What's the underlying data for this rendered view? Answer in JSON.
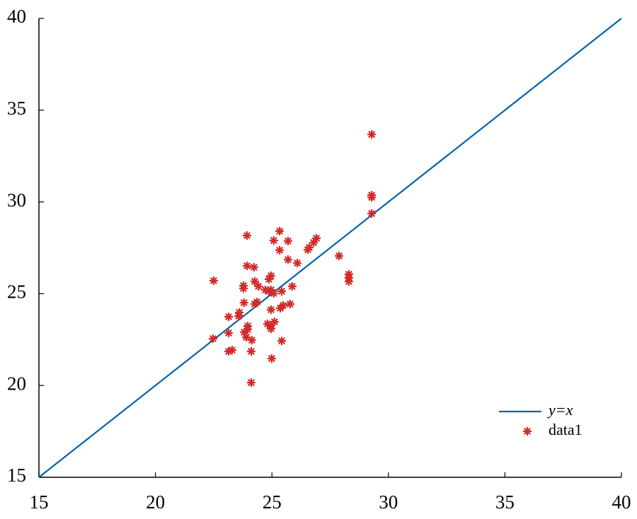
{
  "chart_data": {
    "type": "scatter",
    "xlim": [
      15,
      40
    ],
    "ylim": [
      15,
      40
    ],
    "xticks": [
      15,
      20,
      25,
      30,
      35,
      40
    ],
    "yticks": [
      15,
      20,
      25,
      30,
      35,
      40
    ],
    "legend": "lower right",
    "series": [
      {
        "name": "y=x",
        "mode": "line",
        "color": "#0062ac",
        "x": [
          15,
          40
        ],
        "values": [
          15,
          40
        ]
      },
      {
        "name": "data1",
        "mode": "markers",
        "marker": "asterisk",
        "color": "#d42a2a",
        "x": [
          29.28,
          29.28,
          29.28,
          29.28,
          28.3,
          28.3,
          28.3,
          27.88,
          26.91,
          26.79,
          26.6,
          26.54,
          26.09,
          25.69,
          25.33,
          25.69,
          25.08,
          25.33,
          23.93,
          25.87,
          25.42,
          25.78,
          25.48,
          25.36,
          24.96,
          24.87,
          24.96,
          24.87,
          25.08,
          24.72,
          24.42,
          24.26,
          24.23,
          23.93,
          23.78,
          23.78,
          24.36,
          24.26,
          23.8,
          23.6,
          23.57,
          23.14,
          24.96,
          25.11,
          24.96,
          24.81,
          24.96,
          23.96,
          23.96,
          23.81,
          23.14,
          24.14,
          23.9,
          25.42,
          22.47,
          22.5,
          23.29,
          23.14,
          24.11,
          24.99,
          24.11
        ],
        "values": [
          33.68,
          30.37,
          30.25,
          29.37,
          26.06,
          25.86,
          25.67,
          27.06,
          28.02,
          27.79,
          27.52,
          27.4,
          26.67,
          26.86,
          28.41,
          27.87,
          27.9,
          27.37,
          28.17,
          25.4,
          25.13,
          24.44,
          24.36,
          24.21,
          25.98,
          25.79,
          25.21,
          25.13,
          25.02,
          25.21,
          25.4,
          25.67,
          26.44,
          26.52,
          25.44,
          25.29,
          24.55,
          24.44,
          24.51,
          23.98,
          23.78,
          23.74,
          24.13,
          23.47,
          23.28,
          23.36,
          23.09,
          23.24,
          23.05,
          22.9,
          22.86,
          22.47,
          22.63,
          22.43,
          22.55,
          25.71,
          21.93,
          21.86,
          21.86,
          21.47,
          20.16
        ]
      }
    ]
  }
}
